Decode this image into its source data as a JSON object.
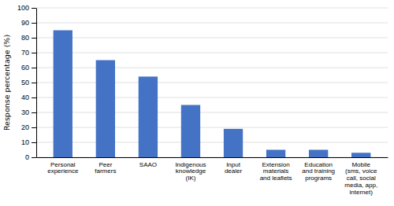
{
  "chart_data": {
    "type": "bar",
    "categories": [
      "Personal\nexperience",
      "Peer\nfarmers",
      "SAAO",
      "Indigenous\nknowledge\n(IK)",
      "Input\ndealer",
      "Extension\nmaterials\nand leaflets",
      "Education\nand training\nprograms",
      "Mobile\n(sms, voice\ncall, social\nmedia, app,\ninternet)"
    ],
    "values": [
      85,
      65,
      54,
      35,
      19,
      5,
      5,
      3
    ],
    "color": "#4472C4",
    "ylabel": "Response percentage (%)",
    "ylim": [
      0,
      100
    ],
    "yticks": [
      0,
      10,
      20,
      30,
      40,
      50,
      60,
      70,
      80,
      90,
      100
    ],
    "grid": true
  }
}
